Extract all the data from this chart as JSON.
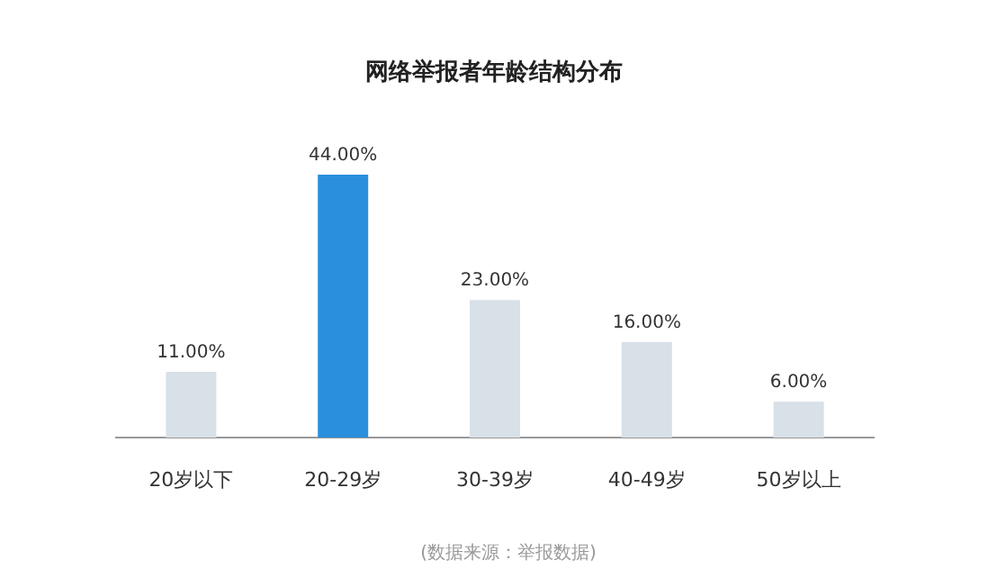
{
  "chart_data": {
    "type": "bar",
    "title": "网络举报者年龄结构分布",
    "categories": [
      "20岁以下",
      "20-29岁",
      "30-39岁",
      "40-49岁",
      "50岁以上"
    ],
    "values": [
      11,
      44,
      23,
      16,
      6
    ],
    "colors": [
      "#d8e0e8",
      "#2a8fdd",
      "#d8e0e8",
      "#d8e0e8",
      "#d8e0e8"
    ],
    "value_labels": [
      "11.00%",
      "44.00%",
      "23.00%",
      "16.00%",
      "6.00%"
    ],
    "annotations": [
      "(数据来源：举报数据)"
    ]
  }
}
